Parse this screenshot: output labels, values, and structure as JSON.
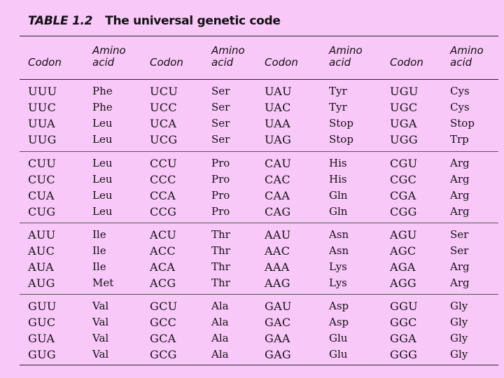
{
  "table": {
    "label": "TABLE 1.2",
    "title": "The universal genetic code",
    "headers": [
      {
        "line1": "",
        "line2": "Codon"
      },
      {
        "line1": "Amino",
        "line2": "acid"
      },
      {
        "line1": "",
        "line2": "Codon"
      },
      {
        "line1": "Amino",
        "line2": "acid"
      },
      {
        "line1": "",
        "line2": "Codon"
      },
      {
        "line1": "Amino",
        "line2": "acid"
      },
      {
        "line1": "",
        "line2": "Codon"
      },
      {
        "line1": "Amino",
        "line2": "acid"
      }
    ],
    "groups": [
      [
        [
          "UUU",
          "Phe",
          "UCU",
          "Ser",
          "UAU",
          "Tyr",
          "UGU",
          "Cys"
        ],
        [
          "UUC",
          "Phe",
          "UCC",
          "Ser",
          "UAC",
          "Tyr",
          "UGC",
          "Cys"
        ],
        [
          "UUA",
          "Leu",
          "UCA",
          "Ser",
          "UAA",
          "Stop",
          "UGA",
          "Stop"
        ],
        [
          "UUG",
          "Leu",
          "UCG",
          "Ser",
          "UAG",
          "Stop",
          "UGG",
          "Trp"
        ]
      ],
      [
        [
          "CUU",
          "Leu",
          "CCU",
          "Pro",
          "CAU",
          "His",
          "CGU",
          "Arg"
        ],
        [
          "CUC",
          "Leu",
          "CCC",
          "Pro",
          "CAC",
          "His",
          "CGC",
          "Arg"
        ],
        [
          "CUA",
          "Leu",
          "CCA",
          "Pro",
          "CAA",
          "Gln",
          "CGA",
          "Arg"
        ],
        [
          "CUG",
          "Leu",
          "CCG",
          "Pro",
          "CAG",
          "Gln",
          "CGG",
          "Arg"
        ]
      ],
      [
        [
          "AUU",
          "Ile",
          "ACU",
          "Thr",
          "AAU",
          "Asn",
          "AGU",
          "Ser"
        ],
        [
          "AUC",
          "Ile",
          "ACC",
          "Thr",
          "AAC",
          "Asn",
          "AGC",
          "Ser"
        ],
        [
          "AUA",
          "Ile",
          "ACA",
          "Thr",
          "AAA",
          "Lys",
          "AGA",
          "Arg"
        ],
        [
          "AUG",
          "Met",
          "ACG",
          "Thr",
          "AAG",
          "Lys",
          "AGG",
          "Arg"
        ]
      ],
      [
        [
          "GUU",
          "Val",
          "GCU",
          "Ala",
          "GAU",
          "Asp",
          "GGU",
          "Gly"
        ],
        [
          "GUC",
          "Val",
          "GCC",
          "Ala",
          "GAC",
          "Asp",
          "GGC",
          "Gly"
        ],
        [
          "GUA",
          "Val",
          "GCA",
          "Ala",
          "GAA",
          "Glu",
          "GGA",
          "Gly"
        ],
        [
          "GUG",
          "Val",
          "GCG",
          "Ala",
          "GAG",
          "Glu",
          "GGG",
          "Gly"
        ]
      ]
    ]
  },
  "colors": {
    "background": "#f8c8f8",
    "text": "#111111"
  }
}
